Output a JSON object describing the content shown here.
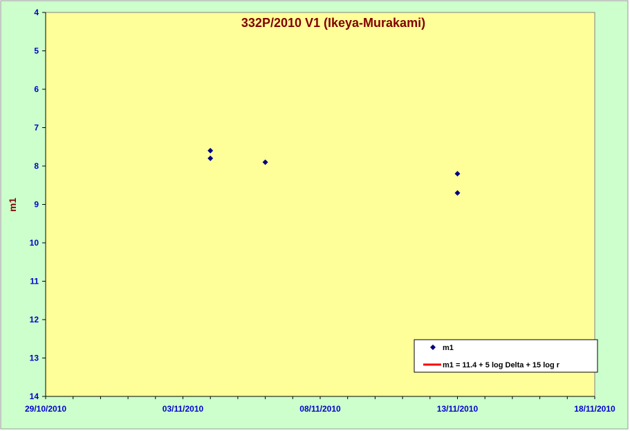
{
  "chart_data": {
    "type": "scatter",
    "title": "332P/2010 V1 (Ikeya-Murakami)",
    "ylabel": "m1",
    "xlabel": "",
    "x_ticks": [
      "29/10/2010",
      "03/11/2010",
      "08/11/2010",
      "13/11/2010",
      "18/11/2010"
    ],
    "xlim": [
      "29/10/2010",
      "18/11/2010"
    ],
    "ylim": [
      4,
      14
    ],
    "y_reversed": true,
    "y_ticks": [
      4,
      5,
      6,
      7,
      8,
      9,
      10,
      11,
      12,
      13,
      14
    ],
    "grid": false,
    "legend_position": "bottom-right",
    "series": [
      {
        "name": "m1",
        "marker": "diamond",
        "color": "#000080",
        "points": [
          {
            "x": "04/11/2010",
            "y": 7.6
          },
          {
            "x": "04/11/2010",
            "y": 7.8
          },
          {
            "x": "06/11/2010",
            "y": 7.9
          },
          {
            "x": "13/11/2010",
            "y": 8.2
          },
          {
            "x": "13/11/2010",
            "y": 8.7
          }
        ]
      },
      {
        "name": "m1 = 11.4 + 5 log Delta + 15 log r",
        "marker": "line",
        "color": "#ff0000",
        "points": []
      }
    ],
    "colors": {
      "outer_background": "#ccffcc",
      "plot_background": "#ffff99",
      "title": "#800000",
      "tick_labels": "#0000cc",
      "axis": "#000000"
    }
  }
}
